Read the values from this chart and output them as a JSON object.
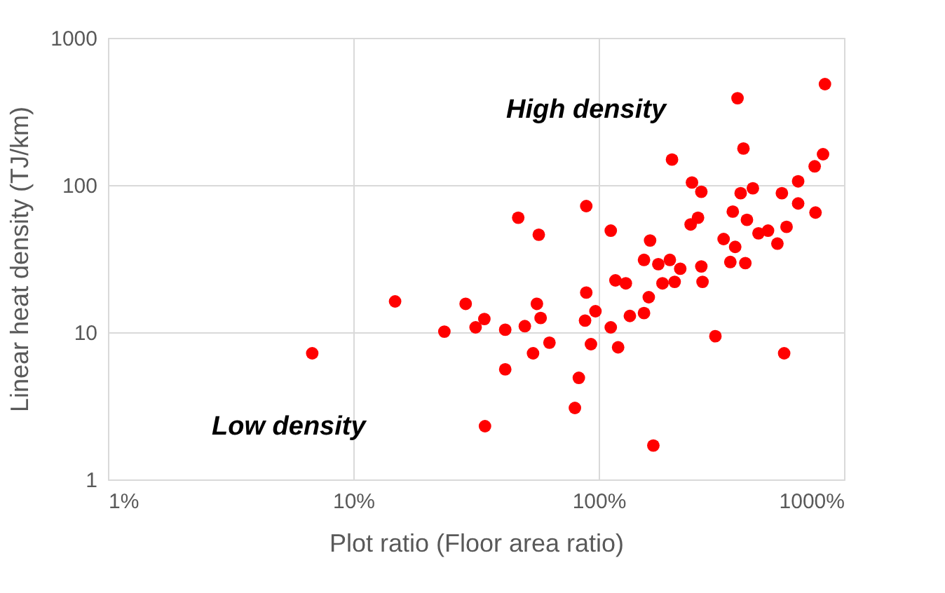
{
  "chart_data": {
    "type": "scatter",
    "xlabel": "Plot ratio (Floor area ratio)",
    "ylabel": "Linear heat density (TJ/km)",
    "log": "xy",
    "xlim": [
      1,
      1000
    ],
    "xticks": [
      {
        "value": 1,
        "label": "1%"
      },
      {
        "value": 10,
        "label": "10%"
      },
      {
        "value": 100,
        "label": "100%"
      },
      {
        "value": 1000,
        "label": "1000%"
      }
    ],
    "ylim": [
      1,
      1000
    ],
    "yticks": [
      1,
      10,
      100,
      1000
    ],
    "grid": true,
    "marker": "circle",
    "annotations": [
      "High density",
      "Low density"
    ],
    "series": [
      {
        "color": "#ff0000",
        "x": [
          6.8,
          14.8,
          23.5,
          28.7,
          31.5,
          34.2,
          34.4,
          836,
          368,
          389,
          199,
          821,
          759,
          650,
          240,
          262,
          379,
          425,
          558,
          650,
          765,
          352,
          402,
          254,
          237,
          583,
          490,
          448,
          535,
          323,
          360,
          344,
          396,
          162,
          153,
          175,
          195,
          215,
          262,
          265,
          204,
          182,
          117,
          129,
          160,
          153,
          134,
          112,
          120,
          167,
          299,
          570,
          112,
          89,
          47,
          57,
          89,
          97,
          88,
          93,
          83,
          80,
          56,
          58,
          50,
          63,
          54,
          41.6,
          41.6
        ],
        "values": [
          7.2,
          16.2,
          10.1,
          15.6,
          10.8,
          12.3,
          2.3,
          485,
          389,
          177,
          149,
          162,
          134,
          106,
          104,
          90,
          88,
          95,
          88,
          75,
          65,
          66,
          58,
          60,
          54,
          52,
          49,
          47,
          40,
          43,
          38,
          30,
          29.5,
          42,
          31,
          29,
          31,
          27,
          28,
          22,
          22,
          21.5,
          22.5,
          21.5,
          17.3,
          13.5,
          12.9,
          10.8,
          7.9,
          1.7,
          9.4,
          7.2,
          49,
          72,
          60,
          46,
          18.6,
          13.9,
          12.0,
          8.3,
          4.9,
          3.06,
          15.6,
          12.5,
          11.0,
          8.5,
          7.2,
          10.4,
          5.6
        ]
      }
    ]
  }
}
